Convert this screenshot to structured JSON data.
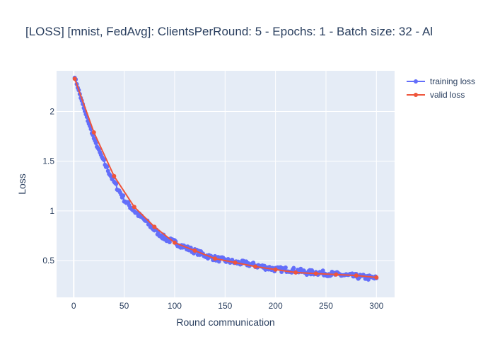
{
  "chart_data": {
    "type": "line",
    "title": "[LOSS] [mnist, FedAvg]: ClientsPerRound: 5 - Epochs: 1 - Batch size: 32 - Al",
    "xlabel": "Round communication",
    "ylabel": "Loss",
    "xlim": [
      -17,
      318
    ],
    "ylim": [
      0.13,
      2.41
    ],
    "x_ticks": [
      0,
      50,
      100,
      150,
      200,
      250,
      300
    ],
    "y_ticks": [
      0.5,
      1,
      1.5,
      2
    ],
    "y_tick_labels": [
      "0.5",
      "1",
      "1.5",
      "2"
    ],
    "grid": true,
    "legend_position": "top-right",
    "series": [
      {
        "name": "training loss",
        "color": "#636efa",
        "mode": "lines+markers",
        "x_start": 1,
        "x_end": 300,
        "values_every_10": [
          2.35,
          2.0,
          1.7,
          1.47,
          1.27,
          1.1,
          0.99,
          0.9,
          0.8,
          0.72,
          0.68,
          0.63,
          0.59,
          0.55,
          0.52,
          0.5,
          0.48,
          0.47,
          0.45,
          0.43,
          0.41,
          0.41,
          0.4,
          0.38,
          0.38,
          0.37,
          0.36,
          0.35,
          0.34,
          0.33,
          0.32
        ],
        "noise_amplitude": 0.025
      },
      {
        "name": "valid loss",
        "color": "#ef553b",
        "mode": "lines+markers",
        "x": [
          1,
          20,
          40,
          60,
          80,
          100,
          120,
          140,
          160,
          180,
          200,
          220,
          240,
          260,
          280,
          300
        ],
        "y": [
          2.33,
          1.79,
          1.35,
          1.04,
          0.84,
          0.68,
          0.6,
          0.52,
          0.48,
          0.44,
          0.41,
          0.38,
          0.37,
          0.36,
          0.35,
          0.33
        ]
      }
    ]
  }
}
